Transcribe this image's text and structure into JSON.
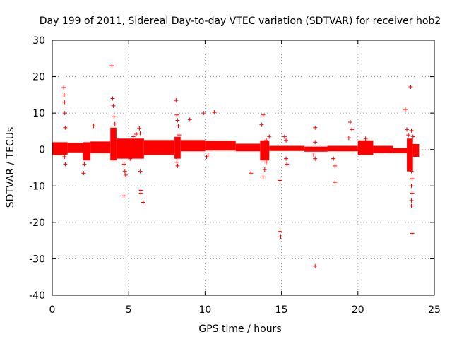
{
  "chart_data": {
    "type": "scatter",
    "title": "Day 199 of 2011, Sidereal Day-to-day VTEC variation (SDTVAR) for receiver hob2",
    "xlabel": "GPS time / hours",
    "ylabel": "SDTVAR / TECUs",
    "xlim": [
      0,
      25
    ],
    "ylim": [
      -40,
      30
    ],
    "xticks": [
      0,
      5,
      10,
      15,
      20,
      25
    ],
    "yticks": [
      -40,
      -30,
      -20,
      -10,
      0,
      10,
      20,
      30
    ],
    "xtick_labels": [
      "0",
      "5",
      "10",
      "15",
      "20",
      "25"
    ],
    "ytick_labels": [
      "-40",
      "-30",
      "-20",
      "-10",
      "0",
      "10",
      "20",
      "30"
    ],
    "grid": true,
    "marker": "+",
    "color": "#ff0000",
    "series": [
      {
        "name": "hob2",
        "points": [
          [
            0.75,
            17
          ],
          [
            0.78,
            15
          ],
          [
            0.8,
            13
          ],
          [
            0.82,
            10
          ],
          [
            0.85,
            6
          ],
          [
            0.8,
            -2
          ],
          [
            0.85,
            -4
          ],
          [
            2.1,
            -4
          ],
          [
            2.05,
            -6.5
          ],
          [
            2.7,
            6.5
          ],
          [
            3.9,
            23
          ],
          [
            3.95,
            14
          ],
          [
            4.0,
            12
          ],
          [
            4.05,
            9
          ],
          [
            4.1,
            7
          ],
          [
            4.7,
            -4
          ],
          [
            4.75,
            -6
          ],
          [
            4.8,
            -7
          ],
          [
            4.7,
            -12.7
          ],
          [
            5.1,
            -2.5
          ],
          [
            5.3,
            3.5
          ],
          [
            5.5,
            4.2
          ],
          [
            5.7,
            5.8
          ],
          [
            5.75,
            4.5
          ],
          [
            5.75,
            -6
          ],
          [
            5.8,
            -11.2
          ],
          [
            5.8,
            -12
          ],
          [
            5.95,
            -14.5
          ],
          [
            8.1,
            13.5
          ],
          [
            8.15,
            9.5
          ],
          [
            8.2,
            8
          ],
          [
            8.25,
            6.5
          ],
          [
            8.3,
            4
          ],
          [
            8.1,
            -2
          ],
          [
            8.15,
            -3.5
          ],
          [
            8.2,
            -4.5
          ],
          [
            9.0,
            8.2
          ],
          [
            9.9,
            10
          ],
          [
            10.6,
            10.2
          ],
          [
            10.1,
            -2
          ],
          [
            10.2,
            -1.5
          ],
          [
            13.0,
            -6.5
          ],
          [
            13.8,
            9.5
          ],
          [
            13.7,
            6.8
          ],
          [
            13.8,
            -7.5
          ],
          [
            13.9,
            -5.5
          ],
          [
            14.0,
            -3.5
          ],
          [
            14.2,
            3.5
          ],
          [
            14.0,
            2.5
          ],
          [
            14.9,
            -8.5
          ],
          [
            14.9,
            -22.5
          ],
          [
            14.95,
            -24
          ],
          [
            15.2,
            3.5
          ],
          [
            15.3,
            2.5
          ],
          [
            15.3,
            -2.5
          ],
          [
            15.35,
            -4
          ],
          [
            17.2,
            6
          ],
          [
            17.2,
            2
          ],
          [
            17.1,
            -1.5
          ],
          [
            17.2,
            -2.5
          ],
          [
            17.2,
            -32
          ],
          [
            18.4,
            -2.5
          ],
          [
            18.5,
            -4.5
          ],
          [
            18.5,
            -9
          ],
          [
            19.5,
            7.5
          ],
          [
            19.6,
            5.5
          ],
          [
            19.4,
            3.2
          ],
          [
            20.5,
            3
          ],
          [
            20.6,
            1.5
          ],
          [
            23.1,
            11
          ],
          [
            23.2,
            5.5
          ],
          [
            23.3,
            4
          ],
          [
            23.45,
            17.2
          ],
          [
            23.5,
            5.2
          ],
          [
            23.6,
            3.5
          ],
          [
            23.5,
            -6
          ],
          [
            23.55,
            -8
          ],
          [
            23.5,
            -10
          ],
          [
            23.55,
            -12
          ],
          [
            23.5,
            -14
          ],
          [
            23.5,
            -15.5
          ],
          [
            23.55,
            -23
          ]
        ],
        "bands": [
          {
            "x": [
              0.0,
              1.0
            ],
            "y": [
              -1.5,
              2.0
            ]
          },
          {
            "x": [
              1.0,
              2.0
            ],
            "y": [
              -0.8,
              1.8
            ]
          },
          {
            "x": [
              2.0,
              2.5
            ],
            "y": [
              -3.0,
              2.0
            ]
          },
          {
            "x": [
              2.5,
              3.8
            ],
            "y": [
              -1.0,
              2.2
            ]
          },
          {
            "x": [
              3.8,
              4.2
            ],
            "y": [
              -3.0,
              6.0
            ]
          },
          {
            "x": [
              4.2,
              6.0
            ],
            "y": [
              -2.5,
              3.0
            ]
          },
          {
            "x": [
              6.0,
              8.0
            ],
            "y": [
              -1.5,
              2.6
            ]
          },
          {
            "x": [
              8.0,
              8.4
            ],
            "y": [
              -2.5,
              3.5
            ]
          },
          {
            "x": [
              8.4,
              10.0
            ],
            "y": [
              -0.5,
              2.6
            ]
          },
          {
            "x": [
              10.0,
              12.0
            ],
            "y": [
              -0.3,
              2.4
            ]
          },
          {
            "x": [
              12.0,
              13.6
            ],
            "y": [
              -0.5,
              1.6
            ]
          },
          {
            "x": [
              13.6,
              14.2
            ],
            "y": [
              -3.0,
              2.5
            ]
          },
          {
            "x": [
              14.2,
              16.5
            ],
            "y": [
              -0.4,
              1.0
            ]
          },
          {
            "x": [
              16.5,
              18.0
            ],
            "y": [
              -0.6,
              0.8
            ]
          },
          {
            "x": [
              18.0,
              20.0
            ],
            "y": [
              -0.5,
              1.0
            ]
          },
          {
            "x": [
              20.0,
              21.0
            ],
            "y": [
              -1.5,
              2.5
            ]
          },
          {
            "x": [
              21.0,
              22.3
            ],
            "y": [
              -1.0,
              1.0
            ]
          },
          {
            "x": [
              22.3,
              23.2
            ],
            "y": [
              -1.0,
              0.4
            ]
          },
          {
            "x": [
              23.2,
              23.6
            ],
            "y": [
              -6.0,
              3.0
            ]
          },
          {
            "x": [
              23.6,
              24.0
            ],
            "y": [
              -2.0,
              1.5
            ]
          }
        ]
      }
    ]
  }
}
